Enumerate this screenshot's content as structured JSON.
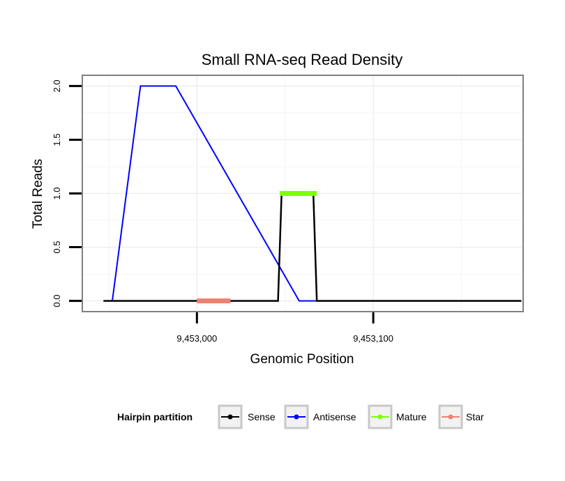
{
  "chart_data": {
    "type": "line",
    "title": "Small RNA-seq Read Density",
    "xlabel": "Genomic Position",
    "ylabel": "Total Reads",
    "xlim": [
      9452935,
      9453185
    ],
    "ylim": [
      -0.1,
      2.1
    ],
    "x_ticks": [
      {
        "value": 9453000,
        "label": "9,453,000"
      },
      {
        "value": 9453100,
        "label": "9,453,100"
      }
    ],
    "y_ticks": [
      {
        "value": 0,
        "label": "0.0"
      },
      {
        "value": 0.5,
        "label": "0.5"
      },
      {
        "value": 1,
        "label": "1.0"
      },
      {
        "value": 1.5,
        "label": "1.5"
      },
      {
        "value": 2,
        "label": "2.0"
      }
    ],
    "grid": true,
    "legend": {
      "title": "Hairpin partition",
      "position": "bottom",
      "entries": [
        "Sense",
        "Antisense",
        "Mature",
        "Star"
      ]
    },
    "series": [
      {
        "name": "Antisense",
        "color": "#0000ff",
        "x": [
          9452952,
          9452968,
          9452988,
          9453058,
          9453080,
          9453182
        ],
        "y": [
          0,
          2,
          2,
          0,
          0,
          0
        ]
      },
      {
        "name": "Sense",
        "color": "#000000",
        "x": [
          9452947,
          9453046,
          9453048,
          9453066,
          9453068,
          9453184
        ],
        "y": [
          0,
          0,
          1,
          1,
          0,
          0
        ]
      },
      {
        "name": "Mature",
        "color": "#7fff00",
        "x": [
          9453047,
          9453068
        ],
        "y": [
          1,
          1
        ]
      },
      {
        "name": "Star",
        "color": "#f08070",
        "x": [
          9453000,
          9453019
        ],
        "y": [
          0,
          0
        ]
      }
    ]
  }
}
